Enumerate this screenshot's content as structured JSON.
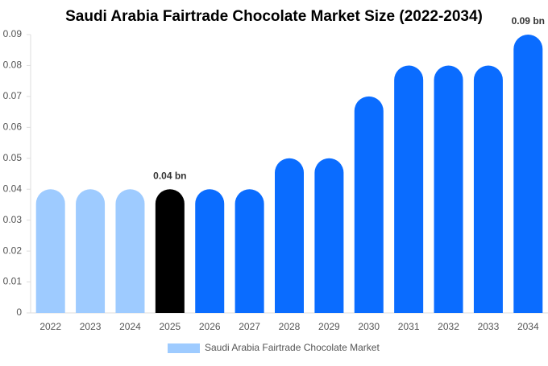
{
  "chart_data": {
    "type": "bar",
    "title": "Saudi Arabia Fairtrade Chocolate Market Size (2022-2034)",
    "categories": [
      "2022",
      "2023",
      "2024",
      "2025",
      "2026",
      "2027",
      "2028",
      "2029",
      "2030",
      "2031",
      "2032",
      "2033",
      "2034"
    ],
    "series": [
      {
        "name": "Saudi Arabia Fairtrade Chocolate Market",
        "color": "#9ecbff",
        "colors": [
          "#9ecbff",
          "#9ecbff",
          "#9ecbff",
          "#000000",
          "#0a6cff",
          "#0a6cff",
          "#0a6cff",
          "#0a6cff",
          "#0a6cff",
          "#0a6cff",
          "#0a6cff",
          "#0a6cff",
          "#0a6cff"
        ],
        "values": [
          0.04,
          0.04,
          0.04,
          0.04,
          0.04,
          0.04,
          0.05,
          0.05,
          0.07,
          0.08,
          0.08,
          0.08,
          0.09
        ],
        "value_labels": [
          null,
          null,
          null,
          "0.04 bn",
          null,
          null,
          null,
          null,
          null,
          null,
          null,
          null,
          "0.09 bn"
        ]
      }
    ],
    "ylim": [
      0,
      0.09
    ],
    "yticks": [
      0,
      0.01,
      0.02,
      0.03,
      0.04,
      0.05,
      0.06,
      0.07,
      0.08,
      0.09
    ],
    "grid": false
  }
}
